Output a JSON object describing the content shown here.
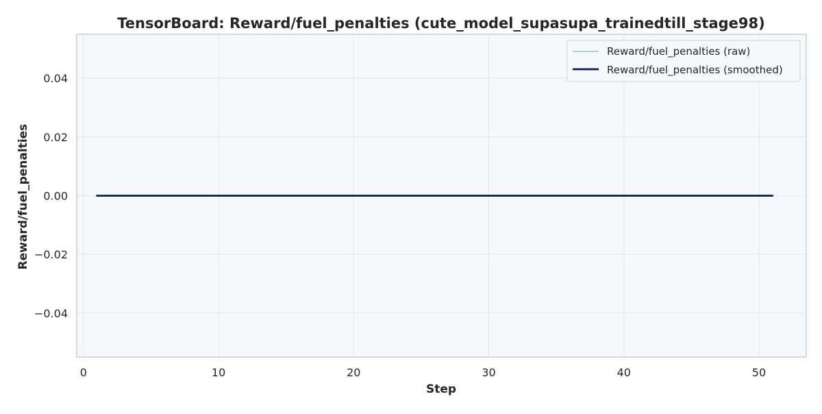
{
  "chart_data": {
    "type": "line",
    "title": "TensorBoard: Reward/fuel_penalties (cute_model_supasupa_trainedtill_stage98)",
    "xlabel": "Step",
    "ylabel": "Reward/fuel_penalties",
    "xlim": [
      -0.5,
      53.5
    ],
    "ylim": [
      -0.055,
      0.055
    ],
    "xticks": [
      0,
      10,
      20,
      30,
      40,
      50
    ],
    "xtick_labels": [
      "0",
      "10",
      "20",
      "30",
      "40",
      "50"
    ],
    "yticks": [
      -0.04,
      -0.02,
      0.0,
      0.02,
      0.04
    ],
    "ytick_labels": [
      "−0.04",
      "−0.02",
      "0.00",
      "0.02",
      "0.04"
    ],
    "grid": true,
    "legend_position": "top-right",
    "series": [
      {
        "name": "Reward/fuel_penalties (raw)",
        "color": "#9fbfb8",
        "x": [
          1,
          51
        ],
        "y": [
          0.0,
          0.0
        ]
      },
      {
        "name": "Reward/fuel_penalties (smoothed)",
        "color": "#0b1a4d",
        "x": [
          1,
          51
        ],
        "y": [
          0.0,
          0.0
        ]
      }
    ]
  },
  "colors": {
    "plot_background": "#f5f9fc",
    "grid": "#e3e8ee",
    "axes_border": "#cccccc"
  }
}
